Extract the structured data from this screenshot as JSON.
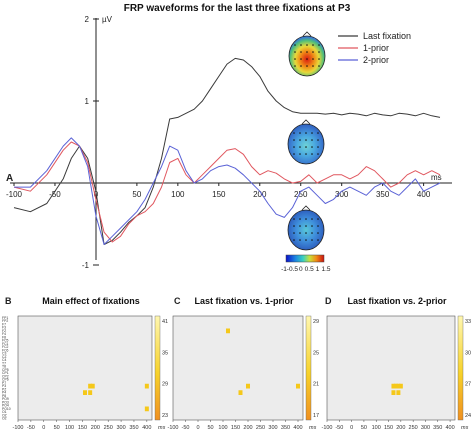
{
  "panel_letters": {
    "a": "A",
    "b": "B",
    "c": "C",
    "d": "D"
  },
  "colors": {
    "last": "#3a3a3a",
    "prior1": "#e0575f",
    "prior2": "#5a62d6",
    "heat_bg": "#ececec",
    "heat_on": "#f5c81a",
    "heat_hot": "#f0a020"
  },
  "chart_data": [
    {
      "type": "line",
      "title": "FRP waveforms for the last three fixations at P3",
      "ylabel": "µV",
      "xlabel": "ms",
      "xlim": [
        -100,
        420
      ],
      "ylim": [
        -1,
        2
      ],
      "xticks": [
        "-100",
        "-50",
        "0",
        "50",
        "100",
        "150",
        "200",
        "250",
        "300",
        "350",
        "400"
      ],
      "yticks": [
        "-1",
        "1",
        "2"
      ],
      "legend_position": "top-right",
      "series": [
        {
          "name": "Last fixation",
          "color": "#3a3a3a",
          "x": [
            -100,
            -80,
            -60,
            -40,
            -30,
            -20,
            -10,
            0,
            10,
            20,
            30,
            40,
            50,
            60,
            70,
            80,
            90,
            100,
            110,
            120,
            130,
            140,
            150,
            160,
            170,
            180,
            190,
            200,
            210,
            220,
            230,
            240,
            250,
            260,
            270,
            280,
            290,
            300,
            310,
            320,
            330,
            340,
            350,
            360,
            370,
            380,
            390,
            400,
            410,
            420
          ],
          "y": [
            -0.3,
            -0.35,
            -0.25,
            0.05,
            0.3,
            0.45,
            0.3,
            -0.1,
            -0.75,
            -0.7,
            -0.6,
            -0.48,
            -0.4,
            -0.3,
            -0.05,
            0.3,
            0.78,
            0.8,
            0.85,
            0.9,
            1.0,
            1.15,
            1.3,
            1.45,
            1.52,
            1.5,
            1.42,
            1.3,
            1.12,
            1.0,
            0.92,
            0.87,
            0.85,
            0.85,
            0.85,
            0.84,
            0.85,
            0.83,
            0.85,
            0.84,
            0.82,
            0.85,
            0.83,
            0.82,
            0.85,
            0.84,
            0.82,
            0.85,
            0.82,
            0.8
          ]
        },
        {
          "name": "1-prior",
          "color": "#e0575f",
          "x": [
            -100,
            -80,
            -60,
            -40,
            -30,
            -20,
            -10,
            0,
            10,
            20,
            30,
            40,
            50,
            60,
            70,
            80,
            90,
            100,
            110,
            120,
            130,
            140,
            150,
            160,
            170,
            180,
            190,
            200,
            210,
            220,
            230,
            240,
            250,
            260,
            270,
            280,
            290,
            300,
            310,
            320,
            330,
            340,
            350,
            360,
            370,
            380,
            390,
            400,
            410,
            420
          ],
          "y": [
            -0.05,
            -0.1,
            0.1,
            0.4,
            0.5,
            0.45,
            0.25,
            -0.2,
            -0.6,
            -0.72,
            -0.65,
            -0.5,
            -0.4,
            -0.35,
            -0.25,
            -0.05,
            0.25,
            0.3,
            0.1,
            0.0,
            0.1,
            0.2,
            0.3,
            0.4,
            0.42,
            0.35,
            0.2,
            0.1,
            0.15,
            0.12,
            0.05,
            0.0,
            0.02,
            0.1,
            0.0,
            0.05,
            0.1,
            0.1,
            0.05,
            0.1,
            0.2,
            0.15,
            0.05,
            -0.05,
            0.0,
            0.1,
            0.15,
            0.1,
            0.15,
            0.1
          ]
        },
        {
          "name": "2-prior",
          "color": "#5a62d6",
          "x": [
            -100,
            -80,
            -60,
            -40,
            -30,
            -20,
            -10,
            0,
            10,
            20,
            30,
            40,
            50,
            60,
            70,
            80,
            90,
            100,
            110,
            120,
            130,
            140,
            150,
            160,
            170,
            180,
            190,
            200,
            210,
            220,
            230,
            240,
            250,
            260,
            270,
            280,
            290,
            300,
            310,
            320,
            330,
            340,
            350,
            360,
            370,
            380,
            390,
            400,
            410,
            420
          ],
          "y": [
            -0.05,
            -0.05,
            0.15,
            0.45,
            0.55,
            0.45,
            0.2,
            -0.4,
            -0.75,
            -0.65,
            -0.55,
            -0.45,
            -0.35,
            -0.2,
            0.0,
            0.2,
            0.45,
            0.4,
            0.15,
            0.0,
            0.05,
            0.15,
            0.2,
            0.22,
            0.18,
            0.1,
            0.0,
            -0.1,
            -0.25,
            -0.38,
            -0.42,
            -0.3,
            -0.1,
            -0.05,
            -0.15,
            -0.25,
            -0.2,
            -0.1,
            -0.05,
            -0.1,
            -0.15,
            -0.05,
            0.0,
            -0.1,
            -0.15,
            -0.05,
            0.05,
            -0.1,
            -0.05,
            0.0
          ]
        }
      ],
      "colorbar": {
        "ticks": [
          "-1",
          "-0.5",
          "0",
          "0.5",
          "1",
          "1.5"
        ]
      }
    },
    {
      "type": "heatmap",
      "title": "Main effect of fixations",
      "xlim": [
        -100,
        420
      ],
      "xticks": [
        "-100",
        "-50",
        "0",
        "50",
        "100",
        "150",
        "200",
        "250",
        "300",
        "350",
        "400"
      ],
      "xunit": "ms",
      "yticks": [
        "FP1",
        "FP2",
        "F7",
        "F3",
        "FZ",
        "F4",
        "F8",
        "FC5",
        "FC1",
        "FC2",
        "FC6",
        "C3",
        "CZ",
        "C4",
        "T7",
        "T8",
        "CP5",
        "CP1",
        "CP2",
        "CP6",
        "P7",
        "P3",
        "PZ",
        "P4",
        "P8",
        "PO9",
        "PO3",
        "PO4",
        "PO10",
        "O1",
        "OZ",
        "O2"
      ],
      "colorbar_ticks": [
        "41",
        "35",
        "29",
        "23"
      ],
      "cells": [
        {
          "x": 180,
          "channel": "P3"
        },
        {
          "x": 190,
          "channel": "P3"
        },
        {
          "x": 160,
          "channel": "P4"
        },
        {
          "x": 180,
          "channel": "P4"
        },
        {
          "x": 400,
          "channel": "P3"
        },
        {
          "x": 400,
          "channel": "PO10"
        }
      ]
    },
    {
      "type": "heatmap",
      "title": "Last fixation vs. 1-prior",
      "xlim": [
        -100,
        420
      ],
      "xticks": [
        "-100",
        "-50",
        "0",
        "50",
        "100",
        "150",
        "200",
        "250",
        "300",
        "350",
        "400"
      ],
      "xunit": "ms",
      "colorbar_ticks": [
        "29",
        "25",
        "21",
        "17"
      ],
      "cells": [
        {
          "x": 120,
          "channel": "FZ"
        },
        {
          "x": 200,
          "channel": "P3"
        },
        {
          "x": 170,
          "channel": "P4"
        },
        {
          "x": 400,
          "channel": "P3"
        }
      ]
    },
    {
      "type": "heatmap",
      "title": "Last fixation vs. 2-prior",
      "xlim": [
        -100,
        420
      ],
      "xticks": [
        "-100",
        "-50",
        "0",
        "50",
        "100",
        "150",
        "200",
        "250",
        "300",
        "350",
        "400"
      ],
      "xunit": "ms",
      "colorbar_ticks": [
        "33",
        "30",
        "27",
        "24"
      ],
      "cells": [
        {
          "x": 170,
          "channel": "P3"
        },
        {
          "x": 180,
          "channel": "P3"
        },
        {
          "x": 190,
          "channel": "P3"
        },
        {
          "x": 200,
          "channel": "P3"
        },
        {
          "x": 170,
          "channel": "P4"
        },
        {
          "x": 190,
          "channel": "P4"
        }
      ]
    }
  ]
}
